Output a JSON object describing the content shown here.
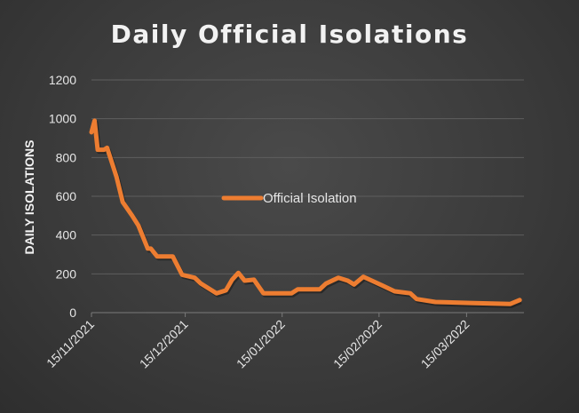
{
  "chart_data": {
    "type": "line",
    "title": "Daily Official Isolations",
    "xlabel": "",
    "ylabel": "DAILY ISOLATIONS",
    "ylim": [
      0,
      1200
    ],
    "yticks": [
      0,
      200,
      400,
      600,
      800,
      1000,
      1200
    ],
    "xticks": [
      "15/11/2021",
      "15/12/2021",
      "15/01/2022",
      "15/02/2022",
      "15/03/2022"
    ],
    "grid": true,
    "legend": "center",
    "line_color": "#ed7d31",
    "series": [
      {
        "name": "Official Isolation",
        "points": [
          [
            "2021-11-15",
            930
          ],
          [
            "2021-11-16",
            990
          ],
          [
            "2021-11-17",
            840
          ],
          [
            "2021-11-19",
            840
          ],
          [
            "2021-11-20",
            850
          ],
          [
            "2021-11-23",
            700
          ],
          [
            "2021-11-25",
            570
          ],
          [
            "2021-11-28",
            500
          ],
          [
            "2021-11-30",
            450
          ],
          [
            "2021-12-03",
            330
          ],
          [
            "2021-12-04",
            330
          ],
          [
            "2021-12-06",
            290
          ],
          [
            "2021-12-11",
            290
          ],
          [
            "2021-12-14",
            195
          ],
          [
            "2021-12-18",
            180
          ],
          [
            "2021-12-20",
            150
          ],
          [
            "2021-12-25",
            100
          ],
          [
            "2021-12-28",
            115
          ],
          [
            "2021-12-30",
            170
          ],
          [
            "2022-01-01",
            205
          ],
          [
            "2022-01-03",
            165
          ],
          [
            "2022-01-06",
            170
          ],
          [
            "2022-01-09",
            100
          ],
          [
            "2022-01-18",
            100
          ],
          [
            "2022-01-20",
            120
          ],
          [
            "2022-01-27",
            120
          ],
          [
            "2022-01-29",
            150
          ],
          [
            "2022-02-02",
            180
          ],
          [
            "2022-02-05",
            165
          ],
          [
            "2022-02-07",
            145
          ],
          [
            "2022-02-10",
            185
          ],
          [
            "2022-02-16",
            140
          ],
          [
            "2022-02-20",
            110
          ],
          [
            "2022-02-25",
            100
          ],
          [
            "2022-02-27",
            70
          ],
          [
            "2022-03-05",
            55
          ],
          [
            "2022-03-16",
            50
          ],
          [
            "2022-03-29",
            45
          ],
          [
            "2022-04-01",
            65
          ]
        ]
      }
    ]
  }
}
